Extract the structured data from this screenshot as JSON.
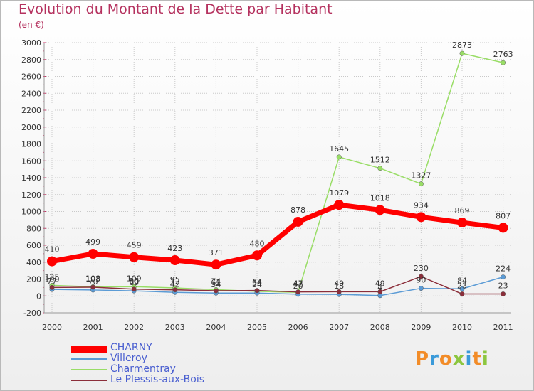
{
  "title": "Evolution du Montant de la Dette par Habitant",
  "subtitle": "(en €)",
  "logo": "Proxiti",
  "chart_data": {
    "type": "line",
    "categories": [
      "2000",
      "2001",
      "2002",
      "2003",
      "2004",
      "2005",
      "2006",
      "2007",
      "2008",
      "2009",
      "2010",
      "2011"
    ],
    "ylim": [
      -200,
      3000
    ],
    "yticks": [
      -200,
      0,
      200,
      400,
      600,
      800,
      1000,
      1200,
      1400,
      1600,
      1800,
      2000,
      2200,
      2400,
      2600,
      2800,
      3000
    ],
    "ytick_labels": [
      "-200",
      "0",
      "200",
      "400",
      "600",
      "800",
      "1000",
      "1200",
      "1400",
      "1600",
      "1800",
      "2000",
      "2200",
      "2400",
      "2600",
      "2800",
      "3000"
    ],
    "grid": true,
    "legend_position": "bottom-left",
    "series": [
      {
        "name": "CHARNY",
        "color": "#ff0000",
        "values": [
          410,
          499,
          459,
          423,
          371,
          480,
          878,
          1079,
          1018,
          934,
          869,
          807
        ],
        "labels": [
          "410",
          "499",
          "459",
          "423",
          "371",
          "480",
          "878",
          "1079",
          "1018",
          "934",
          "869",
          "807"
        ]
      },
      {
        "name": "Villeroy",
        "color": "#5b9bd5",
        "values": [
          77,
          70,
          60,
          42,
          34,
          34,
          20,
          18,
          4,
          90,
          84,
          224
        ],
        "labels": [
          "77",
          "70",
          "60",
          "42",
          "34",
          "34",
          "20",
          "18",
          "4",
          "90",
          "84",
          "224"
        ]
      },
      {
        "name": "Charmentray",
        "color": "#99dd66",
        "values": [
          125,
          108,
          109,
          95,
          74,
          54,
          42,
          1645,
          1512,
          1327,
          2873,
          2763
        ],
        "labels": [
          "125",
          "108",
          "109",
          "95",
          "74",
          "54",
          "42",
          "1645",
          "1512",
          "1327",
          "2873",
          "2763"
        ]
      },
      {
        "name": "Le Plessis-aux-Bois",
        "color": "#8b2e3a",
        "values": [
          100,
          103,
          80,
          72,
          61,
          64,
          47,
          49,
          49,
          230,
          23,
          23
        ],
        "labels": [
          "100",
          "103",
          "80",
          "72",
          "61",
          "64",
          "47",
          "49",
          "49",
          "230",
          "23",
          "23"
        ]
      }
    ]
  }
}
